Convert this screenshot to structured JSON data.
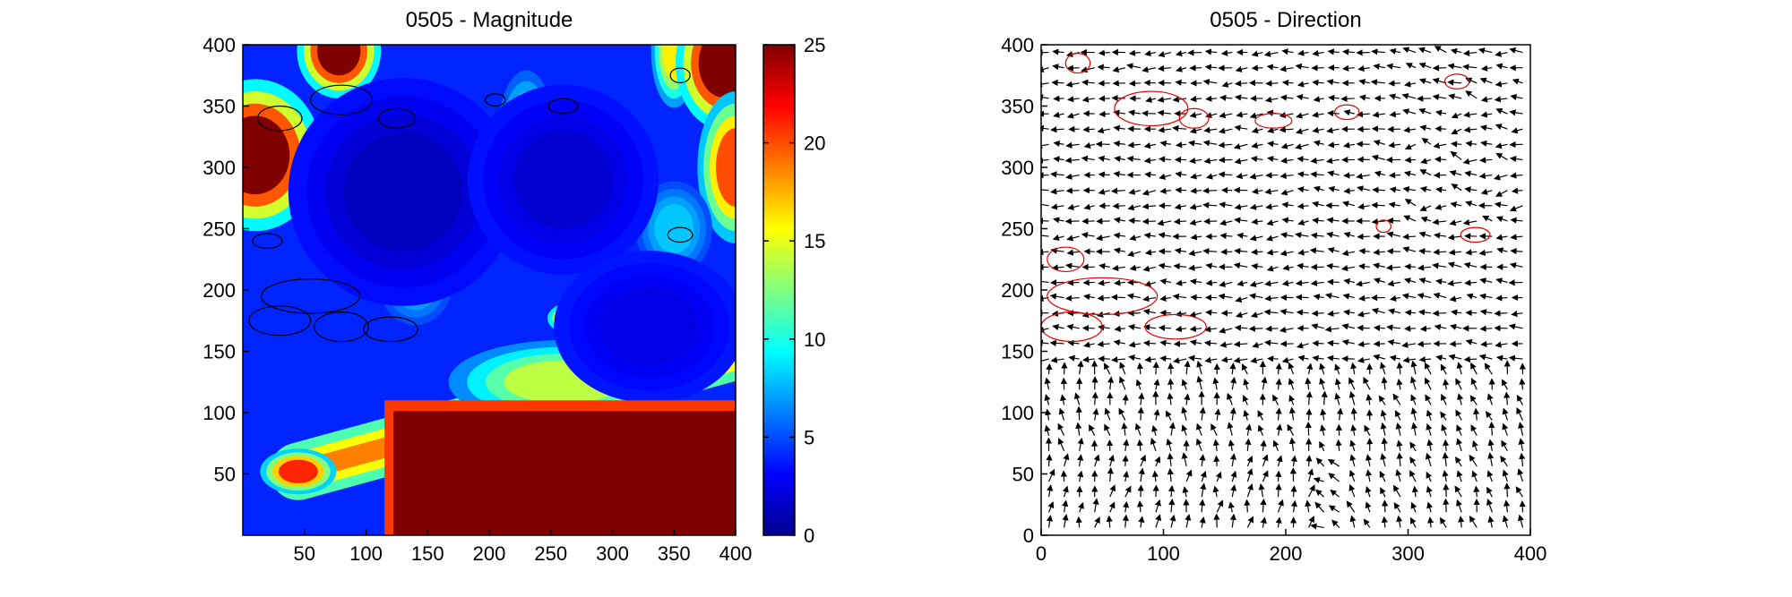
{
  "chart_data": [
    {
      "type": "heatmap",
      "title": "0505 -  Magnitude",
      "xlabel": "",
      "ylabel": "",
      "xlim": [
        0,
        400
      ],
      "ylim": [
        0,
        400
      ],
      "x_ticks": [
        "50",
        "100",
        "150",
        "200",
        "250",
        "300",
        "350",
        "400"
      ],
      "y_ticks": [
        "50",
        "100",
        "150",
        "200",
        "250",
        "300",
        "350",
        "400"
      ],
      "colormap": "jet",
      "colorbar": {
        "range": [
          0,
          25
        ],
        "ticks": [
          "0",
          "5",
          "10",
          "15",
          "20",
          "25"
        ]
      },
      "contour_color": "#000000",
      "background_level": 4,
      "features": [
        {
          "kind": "ridge",
          "from": [
            45,
            52
          ],
          "to": [
            400,
            150
          ],
          "width": 32,
          "level": 18
        },
        {
          "kind": "spot",
          "x": 45,
          "y": 52,
          "rx": 20,
          "ry": 12,
          "level": 21
        },
        {
          "kind": "spot",
          "x": 260,
          "y": 125,
          "rx": 60,
          "ry": 22,
          "level": 14
        },
        {
          "kind": "spot",
          "x": 10,
          "y": 310,
          "rx": 35,
          "ry": 40,
          "level": 25
        },
        {
          "kind": "spot",
          "x": 78,
          "y": 395,
          "rx": 22,
          "ry": 25,
          "level": 25
        },
        {
          "kind": "spot",
          "x": 230,
          "y": 325,
          "rx": 15,
          "ry": 35,
          "level": 10
        },
        {
          "kind": "spot",
          "x": 272,
          "y": 177,
          "rx": 16,
          "ry": 9,
          "level": 24
        },
        {
          "kind": "spot",
          "x": 350,
          "y": 395,
          "rx": 12,
          "ry": 30,
          "level": 16
        },
        {
          "kind": "spot",
          "x": 390,
          "y": 385,
          "rx": 25,
          "ry": 35,
          "level": 25
        },
        {
          "kind": "spot",
          "x": 400,
          "y": 300,
          "rx": 20,
          "ry": 40,
          "level": 20
        },
        {
          "kind": "spot",
          "x": 350,
          "y": 250,
          "rx": 20,
          "ry": 25,
          "level": 8
        },
        {
          "kind": "spot",
          "x": 140,
          "y": 210,
          "rx": 20,
          "ry": 25,
          "level": 8
        },
        {
          "kind": "spot",
          "x": 130,
          "y": 280,
          "rx": 60,
          "ry": 60,
          "level": 1.5
        },
        {
          "kind": "spot",
          "x": 260,
          "y": 290,
          "rx": 50,
          "ry": 50,
          "level": 2
        },
        {
          "kind": "spot",
          "x": 330,
          "y": 170,
          "rx": 50,
          "ry": 40,
          "level": 2.5
        },
        {
          "kind": "region",
          "xmin": 115,
          "xmax": 400,
          "ymin": 0,
          "ymax": 110,
          "level": 25
        }
      ],
      "contours": [
        {
          "x": 30,
          "y": 340,
          "rx": 18,
          "ry": 10
        },
        {
          "x": 80,
          "y": 355,
          "rx": 25,
          "ry": 12
        },
        {
          "x": 125,
          "y": 340,
          "rx": 15,
          "ry": 8
        },
        {
          "x": 205,
          "y": 355,
          "rx": 8,
          "ry": 5
        },
        {
          "x": 260,
          "y": 350,
          "rx": 12,
          "ry": 6
        },
        {
          "x": 355,
          "y": 375,
          "rx": 8,
          "ry": 6
        },
        {
          "x": 20,
          "y": 240,
          "rx": 12,
          "ry": 6
        },
        {
          "x": 55,
          "y": 195,
          "rx": 40,
          "ry": 14
        },
        {
          "x": 30,
          "y": 175,
          "rx": 25,
          "ry": 12
        },
        {
          "x": 80,
          "y": 170,
          "rx": 22,
          "ry": 12
        },
        {
          "x": 120,
          "y": 168,
          "rx": 22,
          "ry": 10
        },
        {
          "x": 355,
          "y": 245,
          "rx": 10,
          "ry": 6
        }
      ]
    },
    {
      "type": "quiver",
      "title": "0505 -  Direction",
      "xlabel": "",
      "ylabel": "",
      "xlim": [
        0,
        400
      ],
      "ylim": [
        0,
        400
      ],
      "x_ticks": [
        "0",
        "100",
        "200",
        "300",
        "400"
      ],
      "y_ticks": [
        "0",
        "50",
        "100",
        "150",
        "200",
        "250",
        "300",
        "350",
        "400"
      ],
      "arrow_color": "#000000",
      "contour_color": "#e00000",
      "grid_spacing": 12.5,
      "flow": {
        "dominant_direction": "west",
        "convergence_x": 220
      },
      "contours": [
        {
          "x": 30,
          "y": 385,
          "rx": 10,
          "ry": 8
        },
        {
          "x": 90,
          "y": 348,
          "rx": 30,
          "ry": 14
        },
        {
          "x": 125,
          "y": 340,
          "rx": 12,
          "ry": 8
        },
        {
          "x": 190,
          "y": 338,
          "rx": 15,
          "ry": 6
        },
        {
          "x": 250,
          "y": 345,
          "rx": 10,
          "ry": 6
        },
        {
          "x": 340,
          "y": 370,
          "rx": 10,
          "ry": 6
        },
        {
          "x": 20,
          "y": 225,
          "rx": 15,
          "ry": 10
        },
        {
          "x": 50,
          "y": 195,
          "rx": 45,
          "ry": 15
        },
        {
          "x": 25,
          "y": 170,
          "rx": 25,
          "ry": 12
        },
        {
          "x": 110,
          "y": 170,
          "rx": 25,
          "ry": 10
        },
        {
          "x": 280,
          "y": 252,
          "rx": 6,
          "ry": 5
        },
        {
          "x": 355,
          "y": 245,
          "rx": 12,
          "ry": 6
        }
      ]
    }
  ]
}
